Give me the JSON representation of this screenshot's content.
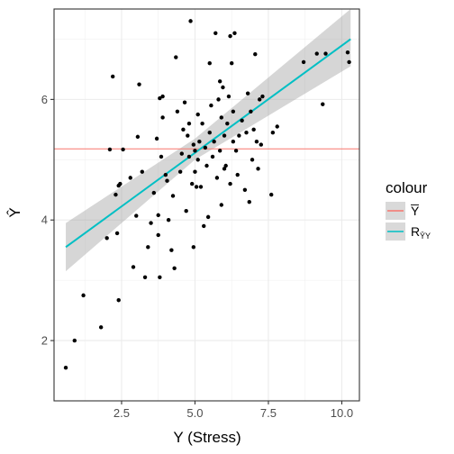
{
  "chart_data": {
    "type": "scatter",
    "xlabel": "Y (Stress)",
    "ylabel": "Ŷ",
    "xlim": [
      0.2,
      10.6
    ],
    "ylim": [
      1.0,
      7.5
    ],
    "x_ticks": [
      2.5,
      5.0,
      7.5,
      10.0
    ],
    "x_tick_labels": [
      "2.5",
      "5.0",
      "7.5",
      "10.0"
    ],
    "y_ticks": [
      2,
      4,
      6
    ],
    "y_tick_labels": [
      "2",
      "4",
      "6"
    ],
    "grid": true,
    "legend": {
      "title": "colour",
      "position": "right",
      "entries": [
        {
          "label": "Y",
          "label_overline": true,
          "subscript": "",
          "color": "#F8766D"
        },
        {
          "label": "R",
          "label_overline": false,
          "subscript": "ȲY",
          "color": "#00BFC4"
        }
      ]
    },
    "mean_line": {
      "y": 5.18,
      "color": "#F8766D"
    },
    "regression": {
      "x_start": 0.6,
      "y_start": 3.55,
      "x_end": 10.3,
      "y_end": 7.0,
      "band_start": [
        3.15,
        3.95
      ],
      "band_mid": [
        5.0,
        5.35
      ],
      "band_end": [
        6.55,
        7.5
      ],
      "x_mid": 5.0,
      "color": "#00BFC4",
      "band_color": "#999999"
    },
    "points": [
      [
        0.6,
        1.55
      ],
      [
        0.9,
        2.0
      ],
      [
        1.2,
        2.75
      ],
      [
        1.8,
        2.22
      ],
      [
        2.0,
        3.7
      ],
      [
        2.1,
        5.17
      ],
      [
        2.2,
        6.38
      ],
      [
        2.3,
        4.42
      ],
      [
        2.35,
        3.78
      ],
      [
        2.4,
        2.67
      ],
      [
        2.4,
        4.57
      ],
      [
        2.45,
        4.6
      ],
      [
        2.55,
        5.17
      ],
      [
        2.8,
        4.7
      ],
      [
        2.9,
        3.22
      ],
      [
        3.0,
        4.07
      ],
      [
        3.05,
        5.38
      ],
      [
        3.1,
        6.25
      ],
      [
        3.2,
        4.8
      ],
      [
        3.3,
        3.05
      ],
      [
        3.4,
        3.55
      ],
      [
        3.5,
        3.95
      ],
      [
        3.6,
        4.45
      ],
      [
        3.7,
        5.35
      ],
      [
        3.75,
        3.75
      ],
      [
        3.75,
        4.08
      ],
      [
        3.8,
        3.05
      ],
      [
        3.8,
        6.02
      ],
      [
        3.85,
        5.05
      ],
      [
        3.9,
        5.7
      ],
      [
        3.9,
        6.05
      ],
      [
        4.0,
        4.75
      ],
      [
        4.05,
        4.65
      ],
      [
        4.1,
        4.0
      ],
      [
        4.2,
        3.5
      ],
      [
        4.25,
        4.4
      ],
      [
        4.3,
        3.2
      ],
      [
        4.35,
        6.7
      ],
      [
        4.4,
        5.8
      ],
      [
        4.5,
        4.8
      ],
      [
        4.55,
        5.1
      ],
      [
        4.6,
        5.5
      ],
      [
        4.65,
        5.95
      ],
      [
        4.7,
        4.15
      ],
      [
        4.75,
        5.4
      ],
      [
        4.8,
        5.05
      ],
      [
        4.8,
        5.6
      ],
      [
        4.85,
        7.3
      ],
      [
        4.9,
        4.6
      ],
      [
        4.95,
        3.55
      ],
      [
        4.95,
        5.25
      ],
      [
        5.0,
        4.8
      ],
      [
        5.0,
        5.15
      ],
      [
        5.05,
        4.55
      ],
      [
        5.1,
        5.0
      ],
      [
        5.1,
        5.75
      ],
      [
        5.15,
        5.3
      ],
      [
        5.2,
        4.55
      ],
      [
        5.25,
        5.6
      ],
      [
        5.3,
        3.9
      ],
      [
        5.35,
        5.2
      ],
      [
        5.4,
        4.9
      ],
      [
        5.45,
        4.05
      ],
      [
        5.5,
        5.45
      ],
      [
        5.5,
        6.6
      ],
      [
        5.55,
        5.9
      ],
      [
        5.6,
        5.05
      ],
      [
        5.65,
        5.3
      ],
      [
        5.7,
        7.1
      ],
      [
        5.75,
        4.7
      ],
      [
        5.8,
        6.0
      ],
      [
        5.85,
        5.15
      ],
      [
        5.85,
        6.3
      ],
      [
        5.9,
        4.25
      ],
      [
        5.9,
        5.7
      ],
      [
        5.95,
        6.2
      ],
      [
        6.0,
        4.85
      ],
      [
        6.0,
        5.4
      ],
      [
        6.05,
        4.9
      ],
      [
        6.1,
        5.6
      ],
      [
        6.15,
        6.05
      ],
      [
        6.2,
        7.05
      ],
      [
        6.2,
        4.6
      ],
      [
        6.25,
        6.6
      ],
      [
        6.3,
        5.3
      ],
      [
        6.3,
        5.8
      ],
      [
        6.35,
        7.1
      ],
      [
        6.4,
        5.15
      ],
      [
        6.45,
        4.75
      ],
      [
        6.5,
        5.4
      ],
      [
        6.6,
        5.65
      ],
      [
        6.7,
        4.5
      ],
      [
        6.75,
        5.45
      ],
      [
        6.8,
        6.1
      ],
      [
        6.85,
        4.3
      ],
      [
        6.9,
        5.8
      ],
      [
        6.95,
        5.0
      ],
      [
        7.0,
        5.5
      ],
      [
        7.05,
        6.75
      ],
      [
        7.1,
        5.3
      ],
      [
        7.15,
        4.85
      ],
      [
        7.2,
        6.0
      ],
      [
        7.25,
        5.25
      ],
      [
        7.3,
        6.05
      ],
      [
        7.6,
        4.42
      ],
      [
        7.65,
        5.45
      ],
      [
        7.8,
        5.55
      ],
      [
        8.7,
        6.62
      ],
      [
        9.15,
        6.76
      ],
      [
        9.35,
        5.92
      ],
      [
        9.45,
        6.76
      ],
      [
        10.2,
        6.78
      ],
      [
        10.25,
        6.62
      ]
    ]
  }
}
